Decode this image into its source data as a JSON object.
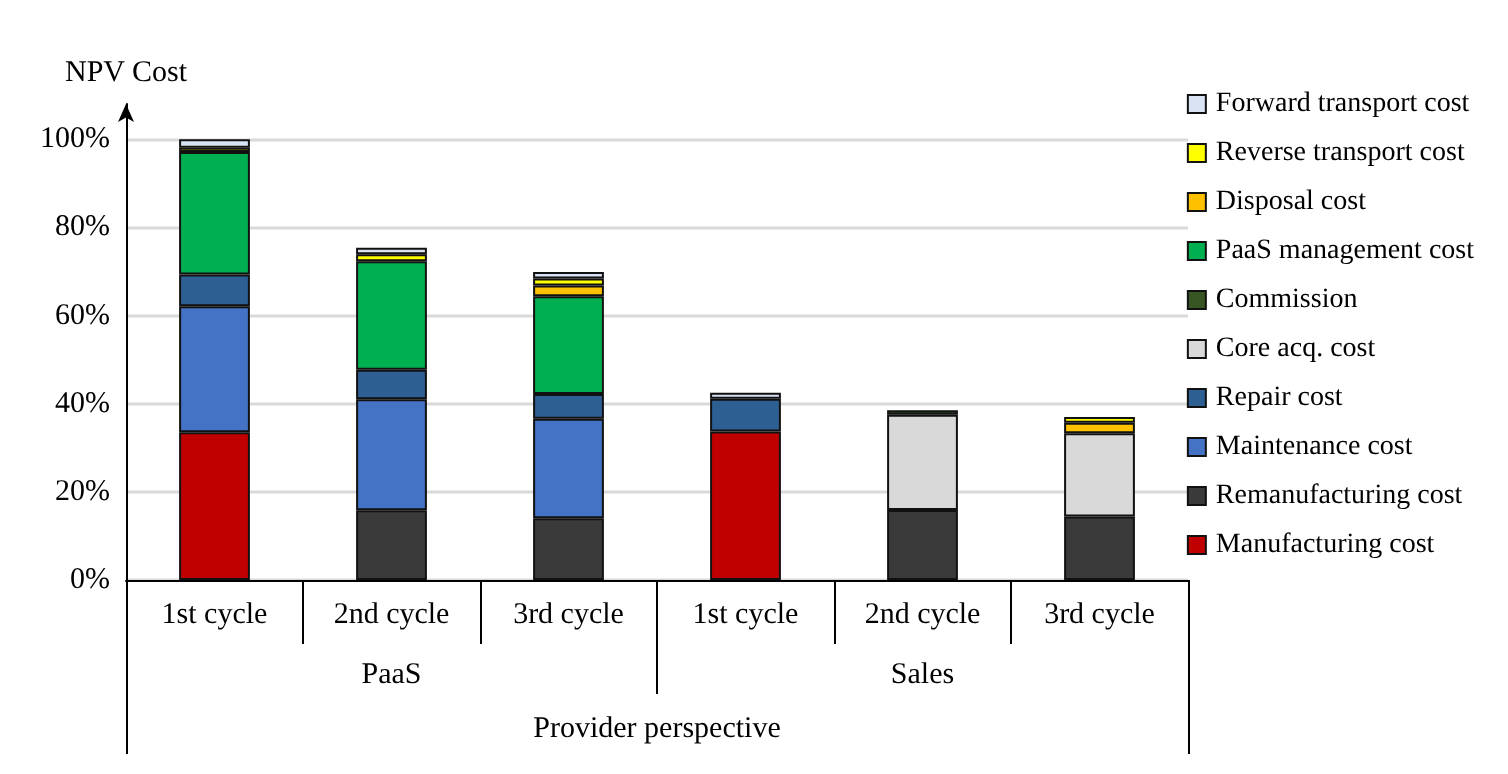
{
  "chart_data": {
    "type": "bar",
    "stacked": true,
    "ylabel": "NPV Cost",
    "categories": [
      "1st cycle",
      "2nd cycle",
      "3rd cycle",
      "1st cycle",
      "2nd cycle",
      "3rd cycle"
    ],
    "annotations": [
      "PaaS",
      "Sales",
      "Provider perspective"
    ],
    "series": [
      {
        "name": "Manufacturing cost",
        "color": "#c00000",
        "values": [
          33.5,
          null,
          null,
          33.7,
          null,
          null
        ]
      },
      {
        "name": "Remanufacturing cost",
        "color": "#3a3a3a",
        "values": [
          null,
          15.8,
          14.0,
          null,
          15.9,
          14.4
        ]
      },
      {
        "name": "Maintenance cost",
        "color": "#4472c4",
        "values": [
          28.6,
          25.2,
          22.6,
          null,
          null,
          null
        ]
      },
      {
        "name": "Repair cost",
        "color": "#2e5f93",
        "values": [
          7.2,
          6.7,
          5.6,
          7.4,
          null,
          null
        ]
      },
      {
        "name": "Core acq. cost",
        "color": "#d9d9d9",
        "values": [
          null,
          null,
          null,
          null,
          21.6,
          18.9
        ]
      },
      {
        "name": "Commission",
        "color": "#375623",
        "values": [
          null,
          null,
          null,
          null,
          1.0,
          null
        ]
      },
      {
        "name": "PaaS management cost",
        "color": "#00b050",
        "values": [
          27.8,
          24.6,
          22.2,
          null,
          null,
          null
        ]
      },
      {
        "name": "Disposal cost",
        "color": "#ffc000",
        "values": [
          null,
          null,
          2.4,
          null,
          null,
          2.4
        ]
      },
      {
        "name": "Reverse transport cost",
        "color": "#ffff00",
        "values": [
          1.0,
          1.6,
          1.6,
          null,
          null,
          1.3
        ]
      },
      {
        "name": "Forward transport cost",
        "color": "#dae3f3",
        "values": [
          1.9,
          1.5,
          1.5,
          1.4,
          null,
          null
        ]
      }
    ],
    "ylim": [
      0,
      108
    ],
    "yticks": [
      {
        "value": 0,
        "label": "0%"
      },
      {
        "value": 20,
        "label": "20%"
      },
      {
        "value": 40,
        "label": "40%"
      },
      {
        "value": 60,
        "label": "60%"
      },
      {
        "value": 80,
        "label": "80%"
      },
      {
        "value": 100,
        "label": "100%"
      }
    ],
    "grid": "y",
    "legend": "right"
  }
}
